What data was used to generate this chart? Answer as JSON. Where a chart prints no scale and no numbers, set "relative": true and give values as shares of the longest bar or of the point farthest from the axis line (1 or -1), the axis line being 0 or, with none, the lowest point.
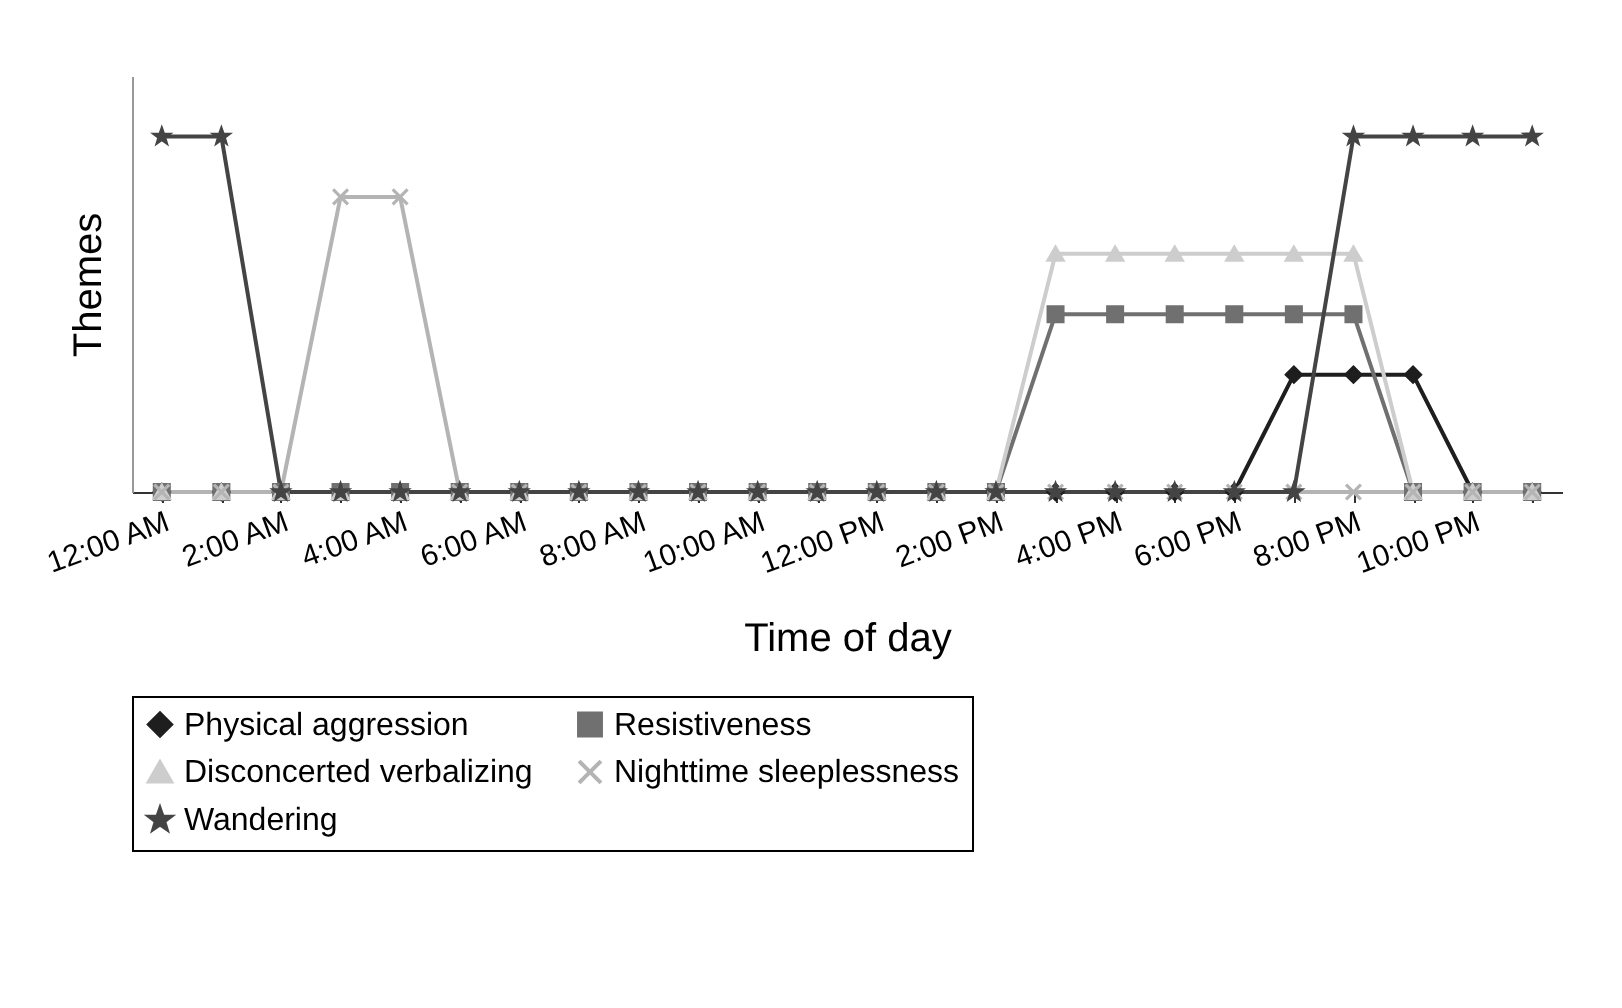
{
  "chart_data": {
    "type": "line",
    "relative": true,
    "xlabel": "Time of day",
    "ylabel": "Themes",
    "legend": "bottom",
    "grid": false,
    "categories": [
      "12:00 AM",
      null,
      "2:00 AM",
      null,
      "4:00 AM",
      null,
      "6:00 AM",
      null,
      "8:00 AM",
      null,
      "10:00 AM",
      null,
      "12:00 PM",
      null,
      "2:00 PM",
      null,
      "4:00 PM",
      null,
      "6:00 PM",
      null,
      "8:00 PM",
      null,
      "10:00 PM",
      null
    ],
    "series": [
      {
        "name": "Physical aggression",
        "color": "#1e1e1e",
        "marker": "diamond",
        "values": [
          0,
          0,
          0,
          0,
          0,
          0,
          0,
          0,
          0,
          0,
          0,
          0,
          0,
          0,
          0,
          0,
          0,
          0,
          0,
          0.33,
          0.33,
          0.33,
          0,
          0
        ]
      },
      {
        "name": "Resistiveness",
        "color": "#707070",
        "marker": "square",
        "values": [
          0,
          0,
          0,
          0,
          0,
          0,
          0,
          0,
          0,
          0,
          0,
          0,
          0,
          0,
          0,
          0.5,
          0.5,
          0.5,
          0.5,
          0.5,
          0.5,
          0,
          0,
          0
        ]
      },
      {
        "name": "Disconcerted verbalizing",
        "color": "#cdcdcd",
        "marker": "triangle",
        "values": [
          0,
          0,
          0,
          0,
          0,
          0,
          0,
          0,
          0,
          0,
          0,
          0,
          0,
          0,
          0,
          0.67,
          0.67,
          0.67,
          0.67,
          0.67,
          0.67,
          0,
          0,
          0
        ]
      },
      {
        "name": "Nighttime sleeplessness",
        "color": "#b4b4b4",
        "marker": "cross",
        "values": [
          0,
          0,
          0,
          0.83,
          0.83,
          0,
          0,
          0,
          0,
          0,
          0,
          0,
          0,
          0,
          0,
          0,
          0,
          0,
          0,
          0,
          0,
          0,
          0,
          0
        ]
      },
      {
        "name": "Wandering",
        "color": "#444444",
        "marker": "star",
        "values": [
          1,
          1,
          0,
          0,
          0,
          0,
          0,
          0,
          0,
          0,
          0,
          0,
          0,
          0,
          0,
          0,
          0,
          0,
          0,
          0,
          1,
          1,
          1,
          1
        ]
      }
    ]
  }
}
